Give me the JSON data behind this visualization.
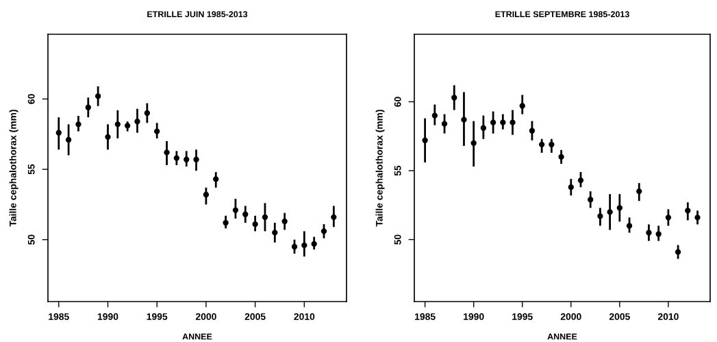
{
  "chart_data": [
    {
      "type": "scatter",
      "title": "ETRILLE JUIN 1985-2013",
      "xlabel": "ANNEE",
      "ylabel": "Taille cephalothorax (mm)",
      "x": [
        1985,
        1986,
        1987,
        1988,
        1989,
        1990,
        1991,
        1992,
        1993,
        1994,
        1995,
        1996,
        1997,
        1998,
        1999,
        2000,
        2001,
        2002,
        2003,
        2004,
        2005,
        2006,
        2007,
        2008,
        2009,
        2010,
        2011,
        2012,
        2013
      ],
      "series": [
        {
          "color": "#000000",
          "values": [
            57.6,
            57.1,
            58.2,
            59.4,
            60.2,
            57.3,
            58.2,
            58.1,
            58.4,
            59.0,
            57.7,
            56.2,
            55.8,
            55.7,
            55.7,
            53.2,
            54.3,
            51.2,
            52.1,
            51.8,
            51.1,
            51.6,
            50.5,
            51.3,
            49.5,
            49.6,
            49.7,
            50.6,
            51.6
          ],
          "errors": [
            [
              56.4,
              58.7
            ],
            [
              56.0,
              58.2
            ],
            [
              57.7,
              58.8
            ],
            [
              58.7,
              60.1
            ],
            [
              59.5,
              60.9
            ],
            [
              56.4,
              58.2
            ],
            [
              57.2,
              59.2
            ],
            [
              57.7,
              58.4
            ],
            [
              57.6,
              59.3
            ],
            [
              58.3,
              59.7
            ],
            [
              57.2,
              58.3
            ],
            [
              55.3,
              57.0
            ],
            [
              55.3,
              56.3
            ],
            [
              55.2,
              56.3
            ],
            [
              54.9,
              56.4
            ],
            [
              52.5,
              53.7
            ],
            [
              53.7,
              54.8
            ],
            [
              50.8,
              51.7
            ],
            [
              51.5,
              52.9
            ],
            [
              51.2,
              52.4
            ],
            [
              50.6,
              51.7
            ],
            [
              50.6,
              52.6
            ],
            [
              49.8,
              51.2
            ],
            [
              50.7,
              51.9
            ],
            [
              49.0,
              50.0
            ],
            [
              48.8,
              50.6
            ],
            [
              49.3,
              50.2
            ],
            [
              50.1,
              51.1
            ],
            [
              50.9,
              52.4
            ]
          ]
        }
      ],
      "xlim": [
        1983.9,
        2014.3
      ],
      "xticks": [
        1985,
        1990,
        1995,
        2000,
        2005,
        2010
      ],
      "ylim": [
        45.6,
        64.6
      ],
      "yticks": [
        50,
        55,
        60
      ],
      "marker": "circle",
      "grid": false,
      "legend": false
    },
    {
      "type": "scatter",
      "title": "ETRILLE SEPTEMBRE 1985-2013",
      "xlabel": "ANNEE",
      "ylabel": "Taille cephalothorax (mm)",
      "x": [
        1985,
        1986,
        1987,
        1988,
        1989,
        1990,
        1991,
        1992,
        1993,
        1994,
        1995,
        1996,
        1997,
        1998,
        1999,
        2000,
        2001,
        2002,
        2003,
        2004,
        2005,
        2006,
        2007,
        2008,
        2009,
        2010,
        2011,
        2012,
        2013
      ],
      "series": [
        {
          "color": "#000000",
          "values": [
            57.2,
            59.0,
            58.4,
            60.3,
            58.7,
            57.0,
            58.1,
            58.5,
            58.5,
            58.5,
            59.7,
            57.9,
            56.9,
            56.9,
            56.0,
            53.8,
            54.3,
            52.9,
            51.7,
            52.0,
            52.3,
            51.0,
            53.5,
            50.5,
            50.4,
            51.6,
            49.1,
            52.1,
            51.6
          ],
          "errors": [
            [
              55.6,
              58.8
            ],
            [
              58.3,
              59.8
            ],
            [
              57.7,
              59.1
            ],
            [
              59.4,
              61.2
            ],
            [
              56.8,
              60.7
            ],
            [
              55.3,
              58.6
            ],
            [
              57.3,
              59.0
            ],
            [
              57.7,
              59.3
            ],
            [
              58.0,
              59.1
            ],
            [
              57.6,
              59.4
            ],
            [
              59.1,
              60.5
            ],
            [
              57.2,
              58.6
            ],
            [
              56.3,
              57.3
            ],
            [
              56.3,
              57.3
            ],
            [
              55.5,
              56.5
            ],
            [
              53.2,
              54.4
            ],
            [
              53.8,
              54.9
            ],
            [
              52.3,
              53.5
            ],
            [
              51.0,
              52.3
            ],
            [
              50.7,
              53.3
            ],
            [
              51.3,
              53.3
            ],
            [
              50.5,
              51.6
            ],
            [
              52.8,
              54.1
            ],
            [
              49.9,
              51.1
            ],
            [
              49.9,
              51.0
            ],
            [
              51.0,
              52.2
            ],
            [
              48.6,
              49.6
            ],
            [
              51.4,
              52.7
            ],
            [
              51.1,
              52.1
            ]
          ]
        }
      ],
      "xlim": [
        1983.9,
        2014.3
      ],
      "xticks": [
        1985,
        1990,
        1995,
        2000,
        2005,
        2010
      ],
      "ylim": [
        45.5,
        64.9
      ],
      "yticks": [
        50,
        55,
        60
      ],
      "marker": "circle",
      "grid": false,
      "legend": false
    }
  ]
}
